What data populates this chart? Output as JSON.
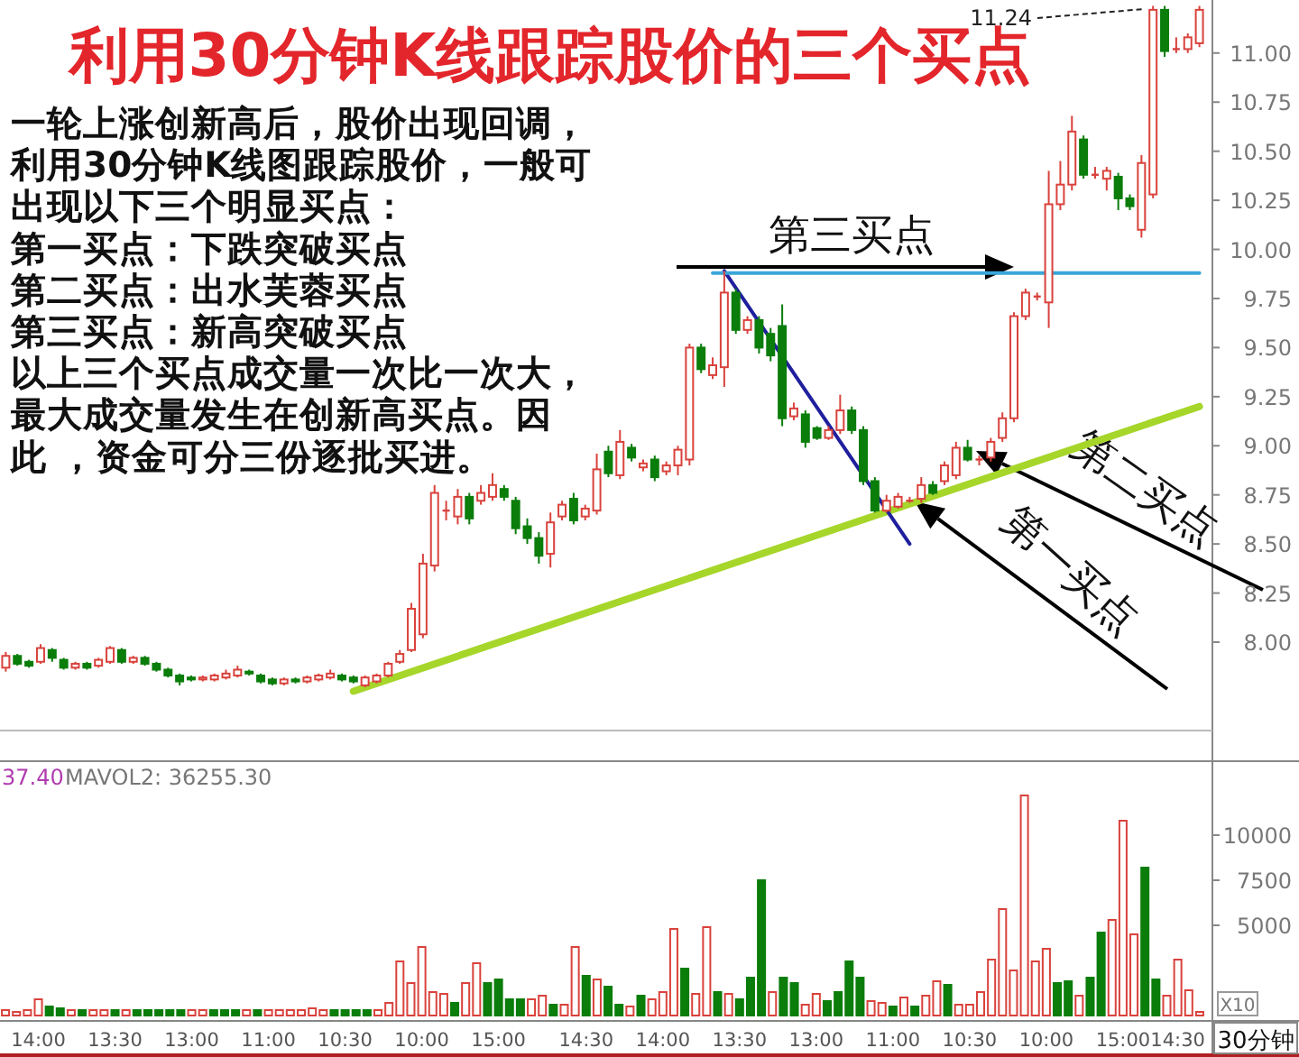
{
  "chart_data": [
    {
      "type": "candlestick",
      "title": "利用30分钟K线跟踪股价的三个买点",
      "annotations": [
        "一轮上涨创新高后，股价出现回调，",
        "利用30分钟K线图跟踪股价，一般可",
        "出现以下三个明显买点：",
        "第一买点：下跌突破买点",
        "第二买点：出水芙蓉买点",
        "第三买点：新高突破买点",
        "以上三个买点成交量一次比一次大，",
        "最大成交量发生在创新高买点。因",
        "此 ，资金可分三份逐批买进。",
        "第三买点",
        "第二买点",
        "第一买点",
        "11.24"
      ],
      "categories": [
        null,
        null,
        null,
        null,
        null,
        null,
        null,
        null,
        null,
        null,
        null,
        null,
        null,
        null,
        null,
        null,
        null,
        null,
        null,
        null,
        null,
        null,
        null,
        null,
        null,
        null,
        null,
        null,
        null,
        null,
        null,
        null,
        null,
        null,
        null,
        null,
        null,
        null,
        null,
        null,
        null,
        null,
        null,
        null,
        null,
        null,
        null,
        null,
        null,
        null,
        null,
        null,
        null,
        null,
        null,
        null,
        null,
        null,
        null,
        null,
        null,
        null,
        null,
        null,
        null,
        null,
        null,
        null,
        null,
        null,
        null,
        null,
        null,
        null,
        null,
        null,
        null,
        null,
        null,
        null,
        null,
        null,
        null,
        null,
        null,
        null,
        null,
        null,
        null,
        null,
        null,
        null,
        null,
        null,
        null,
        null,
        null,
        null,
        null,
        null,
        null,
        null,
        null,
        null
      ],
      "ohlc": [
        [
          7.87,
          7.95,
          7.85,
          7.93
        ],
        [
          7.93,
          7.94,
          7.88,
          7.89
        ],
        [
          7.9,
          7.91,
          7.87,
          7.88
        ],
        [
          7.9,
          7.99,
          7.89,
          7.97
        ],
        [
          7.96,
          7.97,
          7.9,
          7.92
        ],
        [
          7.91,
          7.92,
          7.86,
          7.87
        ],
        [
          7.87,
          7.9,
          7.86,
          7.89
        ],
        [
          7.89,
          7.9,
          7.86,
          7.87
        ],
        [
          7.88,
          7.92,
          7.87,
          7.91
        ],
        [
          7.9,
          7.98,
          7.89,
          7.97
        ],
        [
          7.96,
          7.97,
          7.89,
          7.9
        ],
        [
          7.9,
          7.93,
          7.89,
          7.92
        ],
        [
          7.92,
          7.93,
          7.88,
          7.89
        ],
        [
          7.89,
          7.9,
          7.85,
          7.86
        ],
        [
          7.86,
          7.87,
          7.82,
          7.83
        ],
        [
          7.83,
          7.84,
          7.78,
          7.8
        ],
        [
          7.82,
          7.83,
          7.8,
          7.81
        ],
        [
          7.81,
          7.83,
          7.8,
          7.82
        ],
        [
          7.81,
          7.84,
          7.8,
          7.83
        ],
        [
          7.82,
          7.86,
          7.81,
          7.84
        ],
        [
          7.83,
          7.88,
          7.82,
          7.86
        ],
        [
          7.85,
          7.86,
          7.83,
          7.84
        ],
        [
          7.83,
          7.84,
          7.79,
          7.8
        ],
        [
          7.81,
          7.82,
          7.78,
          7.79
        ],
        [
          7.79,
          7.82,
          7.78,
          7.81
        ],
        [
          7.81,
          7.82,
          7.79,
          7.8
        ],
        [
          7.8,
          7.83,
          7.79,
          7.82
        ],
        [
          7.81,
          7.84,
          7.8,
          7.83
        ],
        [
          7.82,
          7.86,
          7.81,
          7.84
        ],
        [
          7.83,
          7.84,
          7.8,
          7.81
        ],
        [
          7.82,
          7.83,
          7.79,
          7.8
        ],
        [
          7.78,
          7.83,
          7.77,
          7.82
        ],
        [
          7.8,
          7.84,
          7.79,
          7.83
        ],
        [
          7.83,
          7.9,
          7.82,
          7.89
        ],
        [
          7.9,
          7.96,
          7.89,
          7.94
        ],
        [
          7.96,
          8.2,
          7.95,
          8.17
        ],
        [
          8.04,
          8.45,
          8.02,
          8.4
        ],
        [
          8.39,
          8.8,
          8.36,
          8.76
        ],
        [
          8.67,
          8.72,
          8.62,
          8.67
        ],
        [
          8.64,
          8.78,
          8.6,
          8.74
        ],
        [
          8.74,
          8.76,
          8.6,
          8.63
        ],
        [
          8.72,
          8.8,
          8.7,
          8.76
        ],
        [
          8.74,
          8.86,
          8.72,
          8.8
        ],
        [
          8.78,
          8.8,
          8.72,
          8.74
        ],
        [
          8.72,
          8.74,
          8.55,
          8.58
        ],
        [
          8.59,
          8.63,
          8.5,
          8.53
        ],
        [
          8.53,
          8.56,
          8.4,
          8.44
        ],
        [
          8.45,
          8.66,
          8.38,
          8.61
        ],
        [
          8.64,
          8.72,
          8.62,
          8.7
        ],
        [
          8.73,
          8.76,
          8.6,
          8.62
        ],
        [
          8.64,
          8.7,
          8.62,
          8.68
        ],
        [
          8.67,
          8.96,
          8.65,
          8.88
        ],
        [
          8.97,
          9.0,
          8.84,
          8.86
        ],
        [
          8.85,
          9.08,
          8.83,
          9.02
        ],
        [
          8.99,
          9.01,
          8.92,
          8.94
        ],
        [
          8.89,
          8.93,
          8.87,
          8.91
        ],
        [
          8.93,
          8.95,
          8.82,
          8.84
        ],
        [
          8.87,
          8.92,
          8.85,
          8.9
        ],
        [
          8.9,
          9.0,
          8.85,
          8.98
        ],
        [
          8.93,
          9.52,
          8.9,
          9.5
        ],
        [
          9.5,
          9.52,
          9.37,
          9.39
        ],
        [
          9.36,
          9.45,
          9.34,
          9.41
        ],
        [
          9.4,
          9.89,
          9.3,
          9.78
        ],
        [
          9.78,
          9.8,
          9.57,
          9.59
        ],
        [
          9.59,
          9.66,
          9.57,
          9.64
        ],
        [
          9.64,
          9.66,
          9.47,
          9.5
        ],
        [
          9.57,
          9.6,
          9.43,
          9.46
        ],
        [
          9.61,
          9.72,
          9.1,
          9.14
        ],
        [
          9.15,
          9.22,
          9.13,
          9.19
        ],
        [
          9.16,
          9.18,
          8.99,
          9.02
        ],
        [
          9.09,
          9.1,
          9.03,
          9.04
        ],
        [
          9.04,
          9.1,
          9.03,
          9.08
        ],
        [
          9.08,
          9.26,
          9.06,
          9.18
        ],
        [
          9.18,
          9.2,
          9.06,
          9.08
        ],
        [
          9.08,
          9.1,
          8.8,
          8.82
        ],
        [
          8.82,
          8.84,
          8.66,
          8.67
        ],
        [
          8.67,
          8.75,
          8.66,
          8.72
        ],
        [
          8.69,
          8.76,
          8.68,
          8.74
        ],
        [
          8.72,
          8.74,
          8.71,
          8.72
        ],
        [
          8.73,
          8.84,
          8.71,
          8.8
        ],
        [
          8.8,
          8.82,
          8.75,
          8.76
        ],
        [
          8.82,
          8.92,
          8.8,
          8.9
        ],
        [
          8.85,
          9.02,
          8.83,
          8.99
        ],
        [
          8.99,
          9.03,
          8.92,
          8.93
        ],
        [
          8.93,
          8.95,
          8.9,
          8.93
        ],
        [
          8.94,
          9.04,
          8.92,
          9.02
        ],
        [
          9.04,
          9.17,
          9.02,
          9.14
        ],
        [
          9.14,
          9.68,
          9.12,
          9.66
        ],
        [
          9.66,
          9.8,
          9.64,
          9.78
        ],
        [
          9.76,
          9.78,
          9.74,
          9.76
        ],
        [
          9.73,
          10.4,
          9.6,
          10.23
        ],
        [
          10.23,
          10.45,
          10.2,
          10.33
        ],
        [
          10.33,
          10.68,
          10.3,
          10.6
        ],
        [
          10.56,
          10.58,
          10.36,
          10.38
        ],
        [
          10.38,
          10.42,
          10.36,
          10.38
        ],
        [
          10.36,
          10.42,
          10.3,
          10.4
        ],
        [
          10.37,
          10.39,
          10.2,
          10.26
        ],
        [
          10.26,
          10.28,
          10.2,
          10.22
        ],
        [
          10.1,
          10.48,
          10.06,
          10.44
        ],
        [
          10.28,
          11.24,
          10.26,
          11.22
        ],
        [
          11.22,
          11.24,
          10.98,
          11.01
        ],
        [
          11.02,
          11.08,
          11.0,
          11.02
        ],
        [
          11.02,
          11.1,
          11.0,
          11.08
        ],
        [
          11.05,
          11.24,
          11.03,
          11.22
        ]
      ],
      "series": [
        {
          "type": "line",
          "color": "#a6d62a",
          "values": [
            null,
            null,
            null,
            null,
            null,
            null,
            null,
            null,
            null,
            null,
            null,
            null,
            null,
            null,
            null,
            null,
            null,
            null,
            null,
            null,
            null,
            null,
            null,
            null,
            null,
            null,
            null,
            null,
            null,
            null,
            7.75,
            null,
            null,
            null,
            null,
            null,
            null,
            null,
            null,
            null,
            null,
            null,
            null,
            null,
            null,
            null,
            null,
            null,
            null,
            null,
            null,
            null,
            null,
            null,
            null,
            null,
            null,
            null,
            null,
            null,
            null,
            null,
            null,
            null,
            null,
            null,
            null,
            null,
            null,
            null,
            null,
            null,
            null,
            null,
            null,
            null,
            null,
            null,
            null,
            null,
            null,
            null,
            null,
            null,
            null,
            null,
            null,
            null,
            null,
            null,
            null,
            null,
            null,
            null,
            null,
            null,
            null,
            null,
            null,
            null,
            null,
            null,
            null,
            9.2
          ]
        },
        {
          "type": "line",
          "color": "#1f1f9e",
          "values": [
            null,
            null,
            null,
            null,
            null,
            null,
            null,
            null,
            null,
            null,
            null,
            null,
            null,
            null,
            null,
            null,
            null,
            null,
            null,
            null,
            null,
            null,
            null,
            null,
            null,
            null,
            null,
            null,
            null,
            null,
            null,
            null,
            null,
            null,
            null,
            null,
            null,
            null,
            null,
            null,
            null,
            null,
            null,
            null,
            null,
            null,
            null,
            null,
            null,
            null,
            null,
            null,
            null,
            null,
            null,
            null,
            null,
            null,
            null,
            null,
            null,
            null,
            9.89,
            null,
            null,
            null,
            null,
            null,
            null,
            null,
            null,
            null,
            null,
            null,
            null,
            null,
            null,
            null,
            8.5,
            null,
            null,
            null,
            null,
            null,
            null,
            null,
            null,
            null,
            null,
            null,
            null,
            null,
            null,
            null,
            null,
            null,
            null,
            null,
            null,
            null,
            null,
            null,
            null,
            null
          ]
        },
        {
          "type": "line",
          "color": "#3aa6d8",
          "values": [
            null,
            null,
            null,
            null,
            null,
            null,
            null,
            null,
            null,
            null,
            null,
            null,
            null,
            null,
            null,
            null,
            null,
            null,
            null,
            null,
            null,
            null,
            null,
            null,
            null,
            null,
            null,
            null,
            null,
            null,
            null,
            null,
            null,
            null,
            null,
            null,
            null,
            null,
            null,
            null,
            null,
            null,
            null,
            null,
            null,
            null,
            null,
            null,
            null,
            null,
            null,
            null,
            null,
            null,
            null,
            null,
            null,
            null,
            null,
            null,
            null,
            9.88,
            null,
            null,
            null,
            null,
            null,
            null,
            null,
            null,
            null,
            null,
            null,
            null,
            null,
            null,
            null,
            null,
            null,
            null,
            null,
            null,
            null,
            null,
            null,
            null,
            null,
            null,
            null,
            null,
            null,
            null,
            null,
            null,
            null,
            null,
            null,
            null,
            null,
            null,
            null,
            null,
            null,
            9.88
          ]
        }
      ],
      "ylim": [
        7.55,
        11.27
      ],
      "yticks": [
        {
          "value": 8,
          "label": "8.00"
        },
        {
          "value": 8.25,
          "label": "8.25"
        },
        {
          "value": 8.5,
          "label": "8.50"
        },
        {
          "value": 8.75,
          "label": "8.75"
        },
        {
          "value": 9,
          "label": "9.00"
        },
        {
          "value": 9.25,
          "label": "9.25"
        },
        {
          "value": 9.5,
          "label": "9.50"
        },
        {
          "value": 9.75,
          "label": "9.75"
        },
        {
          "value": 10,
          "label": "10.00"
        },
        {
          "value": 10.25,
          "label": "10.25"
        },
        {
          "value": 10.5,
          "label": "10.50"
        },
        {
          "value": 10.75,
          "label": "10.75"
        },
        {
          "value": 11,
          "label": "11.00"
        }
      ]
    },
    {
      "type": "bar",
      "annotations": [
        "37.40",
        "MAVOL2: 36255.30",
        "X10",
        "30分钟"
      ],
      "categories": [
        null,
        null,
        null,
        "14:00",
        null,
        null,
        null,
        null,
        null,
        null,
        "13:30",
        null,
        null,
        null,
        null,
        null,
        null,
        "13:00",
        null,
        null,
        null,
        null,
        null,
        null,
        "11:00",
        null,
        null,
        null,
        null,
        null,
        null,
        "10:30",
        null,
        null,
        null,
        null,
        null,
        null,
        "10:00",
        null,
        null,
        null,
        null,
        null,
        null,
        "15:00",
        null,
        null,
        null,
        null,
        null,
        null,
        null,
        "14:30",
        null,
        null,
        null,
        null,
        null,
        null,
        "14:00",
        null,
        null,
        null,
        null,
        null,
        null,
        "13:30",
        null,
        null,
        null,
        null,
        null,
        null,
        "13:00",
        null,
        null,
        null,
        null,
        null,
        null,
        "11:00",
        null,
        null,
        null,
        null,
        null,
        null,
        "10:30",
        null,
        null,
        null,
        null,
        null,
        null,
        "10:00",
        null,
        null,
        null,
        null,
        null,
        null,
        "15:00",
        null,
        null,
        null,
        null,
        "14:30",
        null,
        null
      ],
      "series": [
        {
          "color": "#d9423c",
          "values": [
            300,
            200,
            300,
            900,
            null,
            null,
            300,
            null,
            300,
            300,
            null,
            300,
            null,
            null,
            null,
            null,
            null,
            300,
            300,
            null,
            null,
            null,
            300,
            null,
            300,
            300,
            300,
            300,
            400,
            300,
            null,
            null,
            null,
            null,
            300,
            700,
            3000,
            1800,
            3800,
            1300,
            1200,
            null,
            1800,
            2900,
            null,
            null,
            null,
            null,
            900,
            1100,
            null,
            600,
            3800,
            null,
            2000,
            null,
            null,
            500,
            null,
            900,
            1300,
            4800,
            null,
            1200,
            4900,
            null,
            1200,
            null,
            null,
            null,
            1300,
            null,
            null,
            600,
            1200,
            null,
            null,
            null,
            null,
            800,
            700,
            null,
            1000,
            null,
            1100,
            1900,
            null,
            600,
            600,
            1300,
            3100,
            5900,
            2500,
            12200,
            3000,
            3700,
            null,
            null,
            1100,
            null,
            null,
            5300,
            10800,
            4500,
            null,
            null,
            1100,
            3100,
            1400,
            200
          ]
        },
        {
          "color": "#0a7d0a",
          "values": [
            null,
            null,
            null,
            null,
            500,
            400,
            null,
            300,
            null,
            null,
            300,
            null,
            300,
            300,
            300,
            300,
            300,
            null,
            null,
            300,
            300,
            300,
            null,
            300,
            null,
            null,
            null,
            null,
            null,
            null,
            300,
            300,
            300,
            300,
            null,
            null,
            null,
            null,
            null,
            null,
            null,
            700,
            null,
            null,
            1800,
            2000,
            900,
            900,
            null,
            null,
            600,
            null,
            null,
            2200,
            null,
            1600,
            600,
            null,
            1100,
            null,
            null,
            null,
            2600,
            null,
            null,
            1300,
            null,
            900,
            2100,
            7500,
            null,
            2100,
            1800,
            null,
            null,
            800,
            1300,
            3000,
            2100,
            null,
            null,
            500,
            null,
            500,
            null,
            null,
            1700,
            null,
            null,
            null,
            null,
            null,
            null,
            null,
            null,
            null,
            1800,
            1900,
            null,
            2100,
            4600,
            null,
            null,
            null,
            8200,
            2000,
            null,
            null,
            null,
            null
          ]
        }
      ],
      "ylim": [
        0,
        14100
      ],
      "yticks": [
        5000,
        7500,
        10000
      ]
    }
  ]
}
